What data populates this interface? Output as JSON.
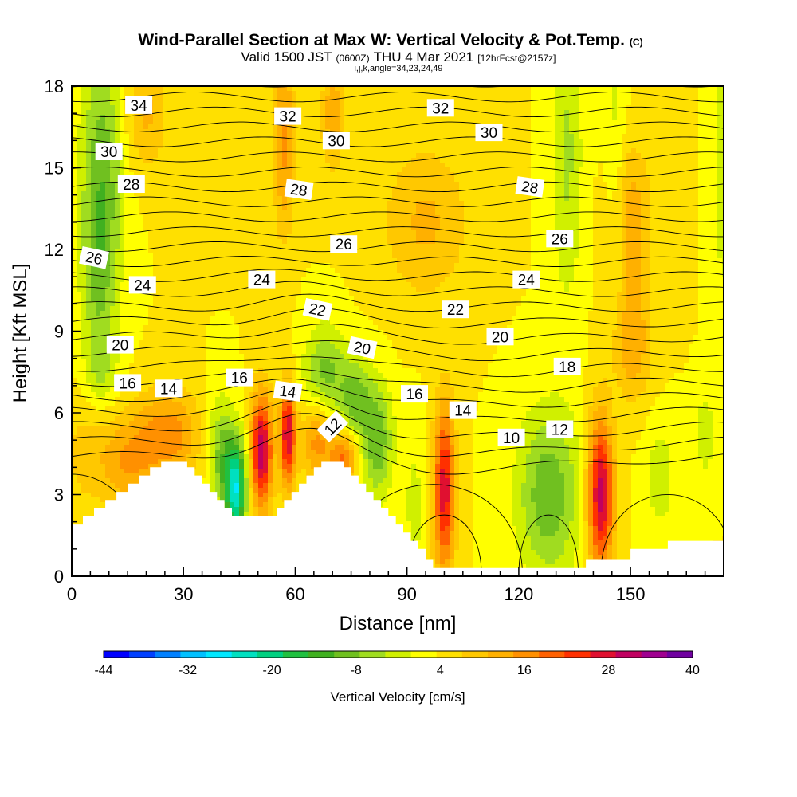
{
  "chart_data": {
    "type": "heatmap",
    "title": "Wind-Parallel Section at Max W: Vertical Velocity & Pot.Temp.",
    "title_mark": "(C)",
    "subtitle_parts": [
      "Valid 1500 JST",
      "(0600Z)",
      "THU 4 Mar 2021",
      "[12hrFcst@2157z]"
    ],
    "subtitle2": "i,j,k,angle=34,23,24,49",
    "xlabel": "Distance [nm]",
    "ylabel": "Height [Kft MSL]",
    "xlim": [
      0,
      175
    ],
    "ylim": [
      0,
      18
    ],
    "x_ticks": [
      0,
      30,
      60,
      90,
      120,
      150
    ],
    "y_ticks": [
      0,
      3,
      6,
      9,
      12,
      15,
      18
    ],
    "colorbar": {
      "label": "Vertical Velocity [cm/s]",
      "tick_labels": [
        "-44",
        "-32",
        "-20",
        "-8",
        "4",
        "16",
        "28",
        "40"
      ],
      "tick_values": [
        -44,
        -32,
        -20,
        -8,
        4,
        16,
        28,
        40
      ],
      "range": [
        -44,
        40
      ],
      "colors": [
        "#0000ff",
        "#0040ff",
        "#0080ff",
        "#00c0ff",
        "#00e8ff",
        "#00e0c0",
        "#00d080",
        "#20c040",
        "#40b020",
        "#70c020",
        "#a0dc20",
        "#d0f000",
        "#ffff00",
        "#ffe000",
        "#ffc800",
        "#ffb000",
        "#ff9000",
        "#ff6000",
        "#ff3000",
        "#e01030",
        "#c00060",
        "#a00090",
        "#7000a0"
      ]
    },
    "terrain_kft": [
      [
        0,
        1.9
      ],
      [
        3,
        1.9
      ],
      [
        3,
        2.2
      ],
      [
        6,
        2.2
      ],
      [
        6,
        2.5
      ],
      [
        9,
        2.5
      ],
      [
        9,
        2.8
      ],
      [
        12,
        2.8
      ],
      [
        12,
        3.1
      ],
      [
        15,
        3.1
      ],
      [
        15,
        3.4
      ],
      [
        18,
        3.4
      ],
      [
        18,
        3.7
      ],
      [
        21,
        3.7
      ],
      [
        21,
        4.0
      ],
      [
        24,
        4.0
      ],
      [
        24,
        4.2
      ],
      [
        31,
        4.2
      ],
      [
        31,
        4.0
      ],
      [
        33,
        4.0
      ],
      [
        33,
        3.7
      ],
      [
        35,
        3.7
      ],
      [
        35,
        3.4
      ],
      [
        37,
        3.4
      ],
      [
        37,
        3.1
      ],
      [
        39,
        3.1
      ],
      [
        39,
        2.8
      ],
      [
        41,
        2.8
      ],
      [
        41,
        2.5
      ],
      [
        43,
        2.5
      ],
      [
        43,
        2.2
      ],
      [
        55,
        2.2
      ],
      [
        55,
        2.5
      ],
      [
        57,
        2.5
      ],
      [
        57,
        2.8
      ],
      [
        59,
        2.8
      ],
      [
        59,
        3.1
      ],
      [
        61,
        3.1
      ],
      [
        61,
        3.4
      ],
      [
        63,
        3.4
      ],
      [
        63,
        3.7
      ],
      [
        65,
        3.7
      ],
      [
        65,
        4.0
      ],
      [
        67,
        4.0
      ],
      [
        67,
        4.2
      ],
      [
        73,
        4.2
      ],
      [
        73,
        4.0
      ],
      [
        75,
        4.0
      ],
      [
        75,
        3.7
      ],
      [
        77,
        3.7
      ],
      [
        77,
        3.4
      ],
      [
        79,
        3.4
      ],
      [
        79,
        3.1
      ],
      [
        81,
        3.1
      ],
      [
        81,
        2.8
      ],
      [
        83,
        2.8
      ],
      [
        83,
        2.5
      ],
      [
        85,
        2.5
      ],
      [
        85,
        2.2
      ],
      [
        87,
        2.2
      ],
      [
        87,
        1.9
      ],
      [
        89,
        1.9
      ],
      [
        89,
        1.6
      ],
      [
        91,
        1.6
      ],
      [
        91,
        1.3
      ],
      [
        93,
        1.3
      ],
      [
        93,
        1.0
      ],
      [
        95,
        1.0
      ],
      [
        95,
        0.6
      ],
      [
        97,
        0.6
      ],
      [
        97,
        0.3
      ],
      [
        138,
        0.3
      ],
      [
        138,
        0.6
      ],
      [
        150,
        0.6
      ],
      [
        150,
        1.0
      ],
      [
        160,
        1.0
      ],
      [
        160,
        1.3
      ],
      [
        175,
        1.3
      ]
    ],
    "velocity_features": [
      {
        "x": 8,
        "y": 14.5,
        "w": -14,
        "sx": 4,
        "sy": 3.5
      },
      {
        "x": 7,
        "y": 10.5,
        "w": -6,
        "sx": 3,
        "sy": 2
      },
      {
        "x": 8,
        "y": 7.5,
        "w": -6,
        "sx": 3,
        "sy": 1
      },
      {
        "x": 4,
        "y": 4.5,
        "w": 5,
        "sx": 5,
        "sy": 1.5
      },
      {
        "x": 15,
        "y": 4.2,
        "w": 10,
        "sx": 5,
        "sy": 1.2
      },
      {
        "x": 26,
        "y": 5.2,
        "w": 13,
        "sx": 6,
        "sy": 1.2
      },
      {
        "x": 40,
        "y": 4.5,
        "w": -12,
        "sx": 2.5,
        "sy": 1.5
      },
      {
        "x": 44,
        "y": 3.2,
        "w": -28,
        "sx": 2,
        "sy": 1.3
      },
      {
        "x": 51,
        "y": 4.6,
        "w": 28,
        "sx": 2,
        "sy": 1.5
      },
      {
        "x": 58,
        "y": 5.2,
        "w": 26,
        "sx": 1.5,
        "sy": 1.3
      },
      {
        "x": 66,
        "y": 5.0,
        "w": 13,
        "sx": 3,
        "sy": 1.0
      },
      {
        "x": 73,
        "y": 4.3,
        "w": 16,
        "sx": 2.5,
        "sy": 0.7
      },
      {
        "x": 68,
        "y": 7.5,
        "w": -12,
        "sx": 4,
        "sy": 1.2
      },
      {
        "x": 76,
        "y": 6.5,
        "w": -12,
        "sx": 3,
        "sy": 1.0
      },
      {
        "x": 82,
        "y": 5.0,
        "w": -14,
        "sx": 3,
        "sy": 1.5
      },
      {
        "x": 100,
        "y": 3.2,
        "w": 24,
        "sx": 2,
        "sy": 2.2
      },
      {
        "x": 92,
        "y": 2.5,
        "w": -5,
        "sx": 2,
        "sy": 2
      },
      {
        "x": 128,
        "y": 3.0,
        "w": -14,
        "sx": 6,
        "sy": 2.2
      },
      {
        "x": 142,
        "y": 3.0,
        "w": 28,
        "sx": 2.5,
        "sy": 2
      },
      {
        "x": 158,
        "y": 3.6,
        "w": -6,
        "sx": 3,
        "sy": 1.5
      },
      {
        "x": 170,
        "y": 5.2,
        "w": -6,
        "sx": 2,
        "sy": 1.2
      },
      {
        "x": 133,
        "y": 15.5,
        "w": -8,
        "sx": 3,
        "sy": 4
      },
      {
        "x": 146,
        "y": 15,
        "w": -5,
        "sx": 2,
        "sy": 5
      },
      {
        "x": 57,
        "y": 16,
        "w": 12,
        "sx": 2,
        "sy": 2.5
      },
      {
        "x": 70,
        "y": 17,
        "w": 10,
        "sx": 2,
        "sy": 1.5
      },
      {
        "x": 20,
        "y": 17,
        "w": 8,
        "sx": 4,
        "sy": 1.5
      },
      {
        "x": 150,
        "y": 13,
        "w": 10,
        "sx": 4,
        "sy": 2
      },
      {
        "x": 95,
        "y": 13,
        "w": 8,
        "sx": 8,
        "sy": 2
      },
      {
        "x": 150,
        "y": 8.5,
        "w": 10,
        "sx": 4,
        "sy": 1.5
      },
      {
        "x": 175,
        "y": 15,
        "w": -6,
        "sx": 2,
        "sy": 4
      }
    ],
    "theta_contour_labels": [
      {
        "value": "34",
        "x": 18,
        "y": 17.3,
        "angle": 0
      },
      {
        "value": "32",
        "x": 58,
        "y": 16.9,
        "angle": 0
      },
      {
        "value": "32",
        "x": 99,
        "y": 17.2,
        "angle": 0
      },
      {
        "value": "30",
        "x": 10,
        "y": 15.6,
        "angle": 0
      },
      {
        "value": "30",
        "x": 71,
        "y": 16.0,
        "angle": 0
      },
      {
        "value": "30",
        "x": 112,
        "y": 16.3,
        "angle": 0
      },
      {
        "value": "28",
        "x": 16,
        "y": 14.4,
        "angle": 0
      },
      {
        "value": "28",
        "x": 61,
        "y": 14.2,
        "angle": 8
      },
      {
        "value": "28",
        "x": 123,
        "y": 14.3,
        "angle": 8
      },
      {
        "value": "26",
        "x": 6,
        "y": 11.7,
        "angle": 12
      },
      {
        "value": "26",
        "x": 73,
        "y": 12.2,
        "angle": 0
      },
      {
        "value": "26",
        "x": 131,
        "y": 12.4,
        "angle": 0
      },
      {
        "value": "24",
        "x": 19,
        "y": 10.7,
        "angle": 0
      },
      {
        "value": "24",
        "x": 51,
        "y": 10.9,
        "angle": 0
      },
      {
        "value": "24",
        "x": 122,
        "y": 10.9,
        "angle": 0
      },
      {
        "value": "22",
        "x": 66,
        "y": 9.8,
        "angle": 12
      },
      {
        "value": "22",
        "x": 103,
        "y": 9.8,
        "angle": 0
      },
      {
        "value": "20",
        "x": 13,
        "y": 8.5,
        "angle": 0
      },
      {
        "value": "20",
        "x": 78,
        "y": 8.4,
        "angle": 12
      },
      {
        "value": "20",
        "x": 115,
        "y": 8.8,
        "angle": 0
      },
      {
        "value": "18",
        "x": 133,
        "y": 7.7,
        "angle": 0
      },
      {
        "value": "16",
        "x": 15,
        "y": 7.1,
        "angle": 0
      },
      {
        "value": "16",
        "x": 45,
        "y": 7.3,
        "angle": 0
      },
      {
        "value": "16",
        "x": 92,
        "y": 6.7,
        "angle": 0
      },
      {
        "value": "14",
        "x": 26,
        "y": 6.9,
        "angle": 0
      },
      {
        "value": "14",
        "x": 58,
        "y": 6.8,
        "angle": 8
      },
      {
        "value": "14",
        "x": 105,
        "y": 6.1,
        "angle": 0
      },
      {
        "value": "12",
        "x": 70,
        "y": 5.5,
        "angle": -45
      },
      {
        "value": "12",
        "x": 131,
        "y": 5.4,
        "angle": 0
      },
      {
        "value": "10",
        "x": 118,
        "y": 5.1,
        "angle": 0
      }
    ]
  }
}
